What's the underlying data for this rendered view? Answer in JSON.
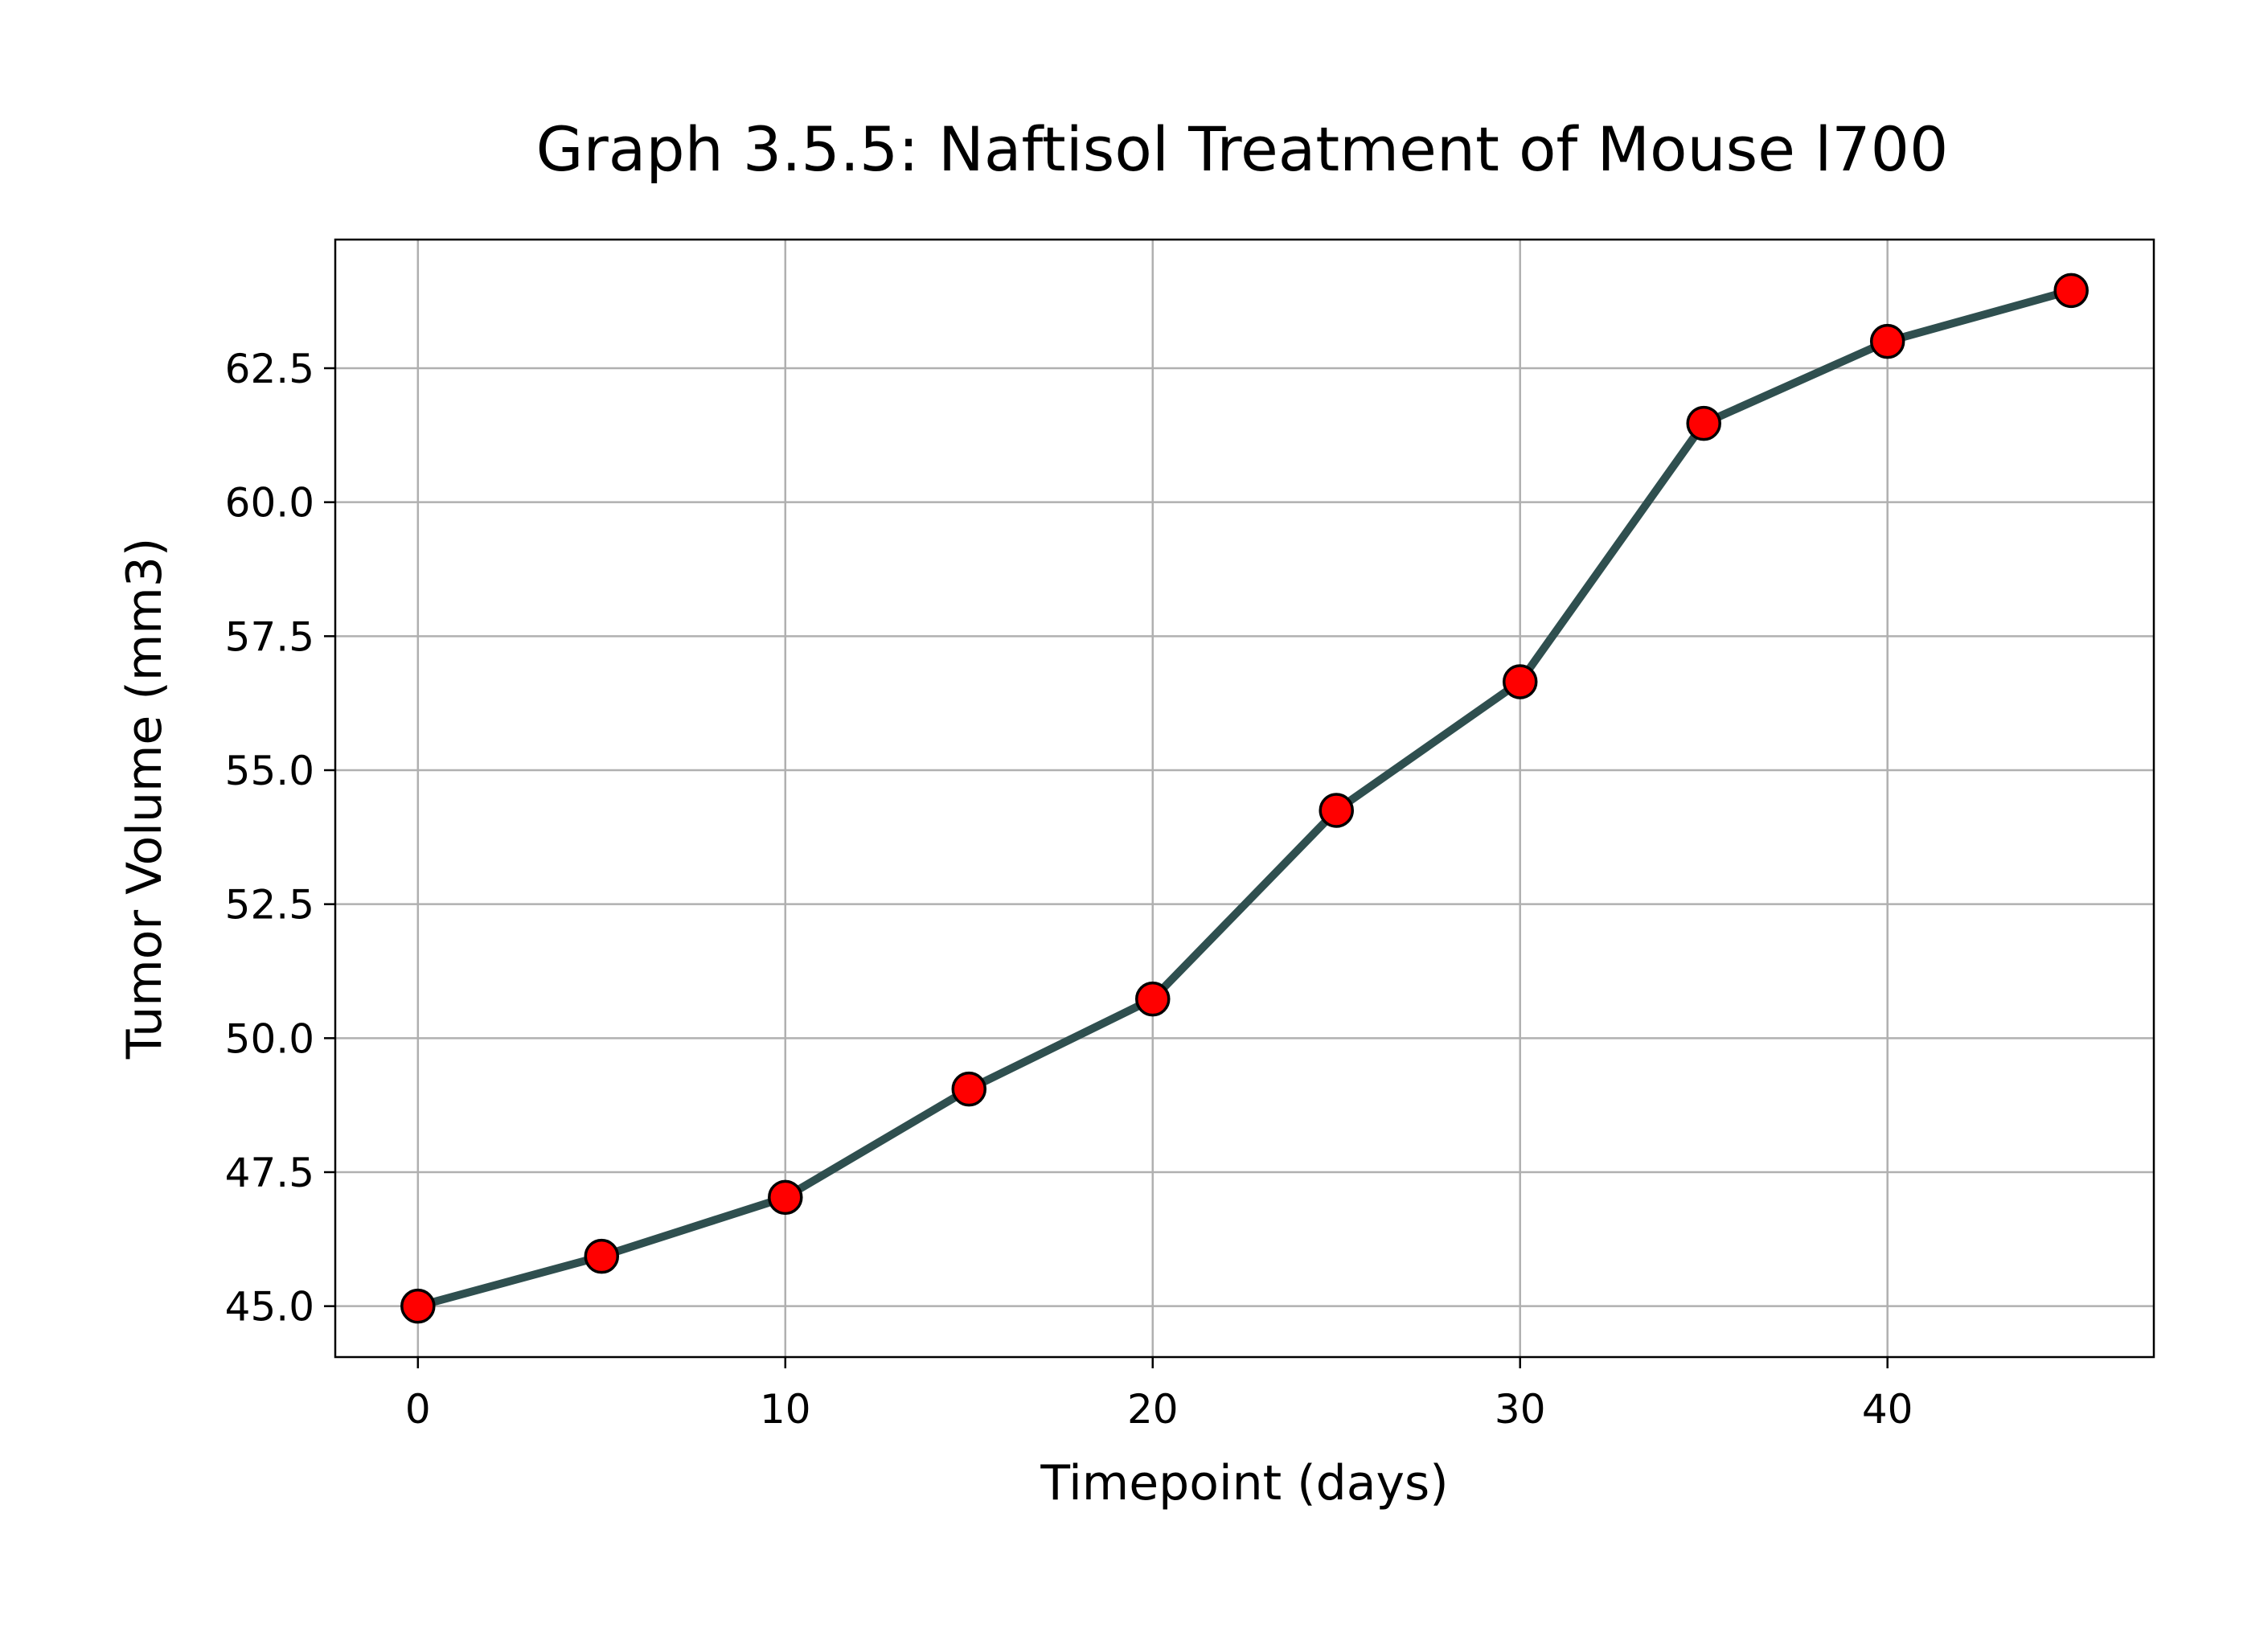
{
  "chart_data": {
    "type": "line",
    "title": "Graph 3.5.5: Naftisol Treatment of Mouse l700",
    "xlabel": "Timepoint (days)",
    "ylabel": "Tumor Volume (mm3)",
    "x": [
      0,
      5,
      10,
      15,
      20,
      25,
      30,
      35,
      40,
      45
    ],
    "series": [
      {
        "values": [
          45.0,
          45.93,
          47.03,
          49.05,
          50.73,
          54.25,
          56.65,
          61.47,
          63.0,
          63.95
        ]
      }
    ],
    "xlim": [
      -2.25,
      47.25
    ],
    "ylim": [
      44.05,
      64.9
    ],
    "xticks": [
      0,
      10,
      20,
      30,
      40
    ],
    "xtick_labels": [
      "0",
      "10",
      "20",
      "30",
      "40"
    ],
    "yticks": [
      45.0,
      47.5,
      50.0,
      52.5,
      55.0,
      57.5,
      60.0,
      62.5
    ],
    "ytick_labels": [
      "45.0",
      "47.5",
      "50.0",
      "52.5",
      "55.0",
      "57.5",
      "60.0",
      "62.5"
    ],
    "grid": true,
    "colors": {
      "line": "#2f4f4f",
      "marker_fill": "#ff0000",
      "marker_edge": "#000000",
      "grid": "#b0b0b0",
      "axes": "#000000"
    }
  }
}
